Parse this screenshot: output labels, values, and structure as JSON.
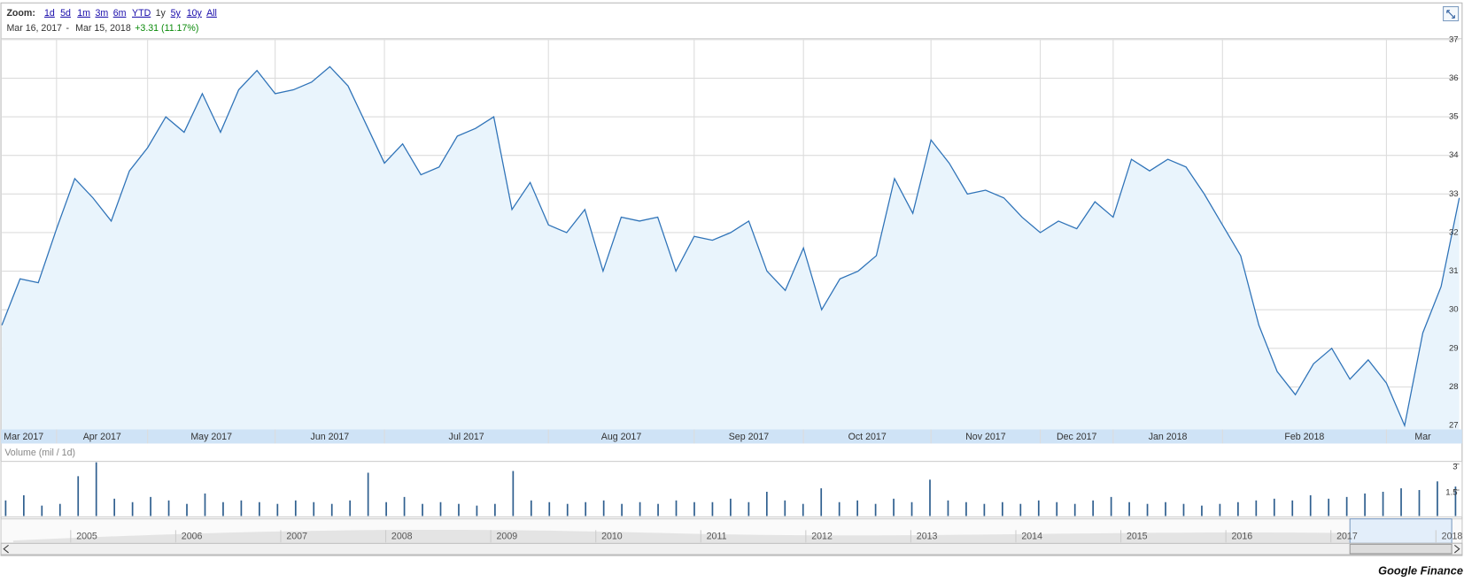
{
  "zoom": {
    "label": "Zoom:",
    "options": [
      "1d",
      "5d",
      "1m",
      "3m",
      "6m",
      "YTD",
      "1y",
      "5y",
      "10y",
      "All"
    ],
    "active": "1y"
  },
  "range": {
    "start": "Mar 16, 2017",
    "separator": "-",
    "end": "Mar 15, 2018",
    "change": "+3.31 (11.17%)"
  },
  "chart_data": [
    {
      "type": "line",
      "color": "#2f73b8",
      "fill": "#e9f4fc",
      "grid": true,
      "categories": [
        "Mar 2017",
        null,
        null,
        "Apr 2017",
        null,
        null,
        null,
        null,
        "May 2017",
        null,
        null,
        null,
        null,
        null,
        null,
        "Jun 2017",
        null,
        null,
        null,
        null,
        null,
        "Jul 2017",
        null,
        null,
        null,
        null,
        null,
        null,
        null,
        null,
        "Aug 2017",
        null,
        null,
        null,
        null,
        null,
        null,
        null,
        "Sep 2017",
        null,
        null,
        null,
        null,
        null,
        "Oct 2017",
        null,
        null,
        null,
        null,
        null,
        null,
        "Nov 2017",
        null,
        null,
        null,
        null,
        null,
        "Dec 2017",
        null,
        null,
        null,
        "Jan 2018",
        null,
        null,
        null,
        null,
        null,
        "Feb 2018",
        null,
        null,
        null,
        null,
        null,
        null,
        null,
        null,
        "Mar",
        null,
        null,
        null,
        null
      ],
      "values": [
        29.6,
        30.8,
        30.7,
        32.1,
        33.4,
        32.9,
        32.3,
        33.6,
        34.2,
        35.0,
        34.6,
        35.6,
        34.6,
        35.7,
        36.2,
        35.6,
        35.7,
        35.9,
        36.3,
        35.8,
        34.8,
        33.8,
        34.3,
        33.5,
        33.7,
        34.5,
        34.7,
        35.0,
        32.6,
        33.3,
        32.2,
        32.0,
        32.6,
        31.0,
        32.4,
        32.3,
        32.4,
        31.0,
        31.9,
        31.8,
        32.0,
        32.3,
        31.0,
        30.5,
        31.6,
        30.0,
        30.8,
        31.0,
        31.4,
        33.4,
        32.5,
        34.4,
        33.8,
        33.0,
        33.1,
        32.9,
        32.4,
        32.0,
        32.3,
        32.1,
        32.8,
        32.4,
        33.9,
        33.6,
        33.9,
        33.7,
        33.0,
        32.2,
        31.4,
        29.6,
        28.4,
        27.8,
        28.6,
        29.0,
        28.2,
        28.7,
        28.1,
        27.0,
        29.4,
        30.6,
        32.9
      ],
      "ylim": [
        26.9,
        37
      ],
      "yticks": [
        27,
        28,
        29,
        30,
        31,
        32,
        33,
        34,
        35,
        36,
        37
      ]
    },
    {
      "type": "bar",
      "title": "Volume (mil / 1d)",
      "color": "#2f5f8f",
      "values": [
        0.9,
        1.2,
        0.6,
        0.7,
        2.3,
        3.1,
        1.0,
        0.8,
        1.1,
        0.9,
        0.7,
        1.3,
        0.8,
        0.9,
        0.8,
        0.7,
        0.9,
        0.8,
        0.7,
        0.9,
        2.5,
        0.8,
        1.1,
        0.7,
        0.8,
        0.7,
        0.6,
        0.7,
        2.6,
        0.9,
        0.8,
        0.7,
        0.8,
        0.9,
        0.7,
        0.8,
        0.7,
        0.9,
        0.8,
        0.8,
        1.0,
        0.8,
        1.4,
        0.9,
        0.7,
        1.6,
        0.8,
        0.9,
        0.7,
        1.0,
        0.8,
        2.1,
        0.9,
        0.8,
        0.7,
        0.8,
        0.7,
        0.9,
        0.8,
        0.7,
        0.9,
        1.1,
        0.8,
        0.7,
        0.8,
        0.7,
        0.6,
        0.7,
        0.8,
        0.9,
        1.0,
        0.9,
        1.2,
        1.0,
        1.1,
        1.3,
        1.4,
        1.6,
        1.5,
        2.0,
        1.7
      ],
      "ylim": [
        0,
        3.1
      ],
      "yticks": [
        1.5,
        3
      ]
    }
  ],
  "navigator": {
    "years": [
      "2005",
      "2006",
      "2007",
      "2008",
      "2009",
      "2010",
      "2011",
      "2012",
      "2013",
      "2014",
      "2015",
      "2016",
      "2017",
      "2018"
    ]
  },
  "footer": "Google Finance"
}
